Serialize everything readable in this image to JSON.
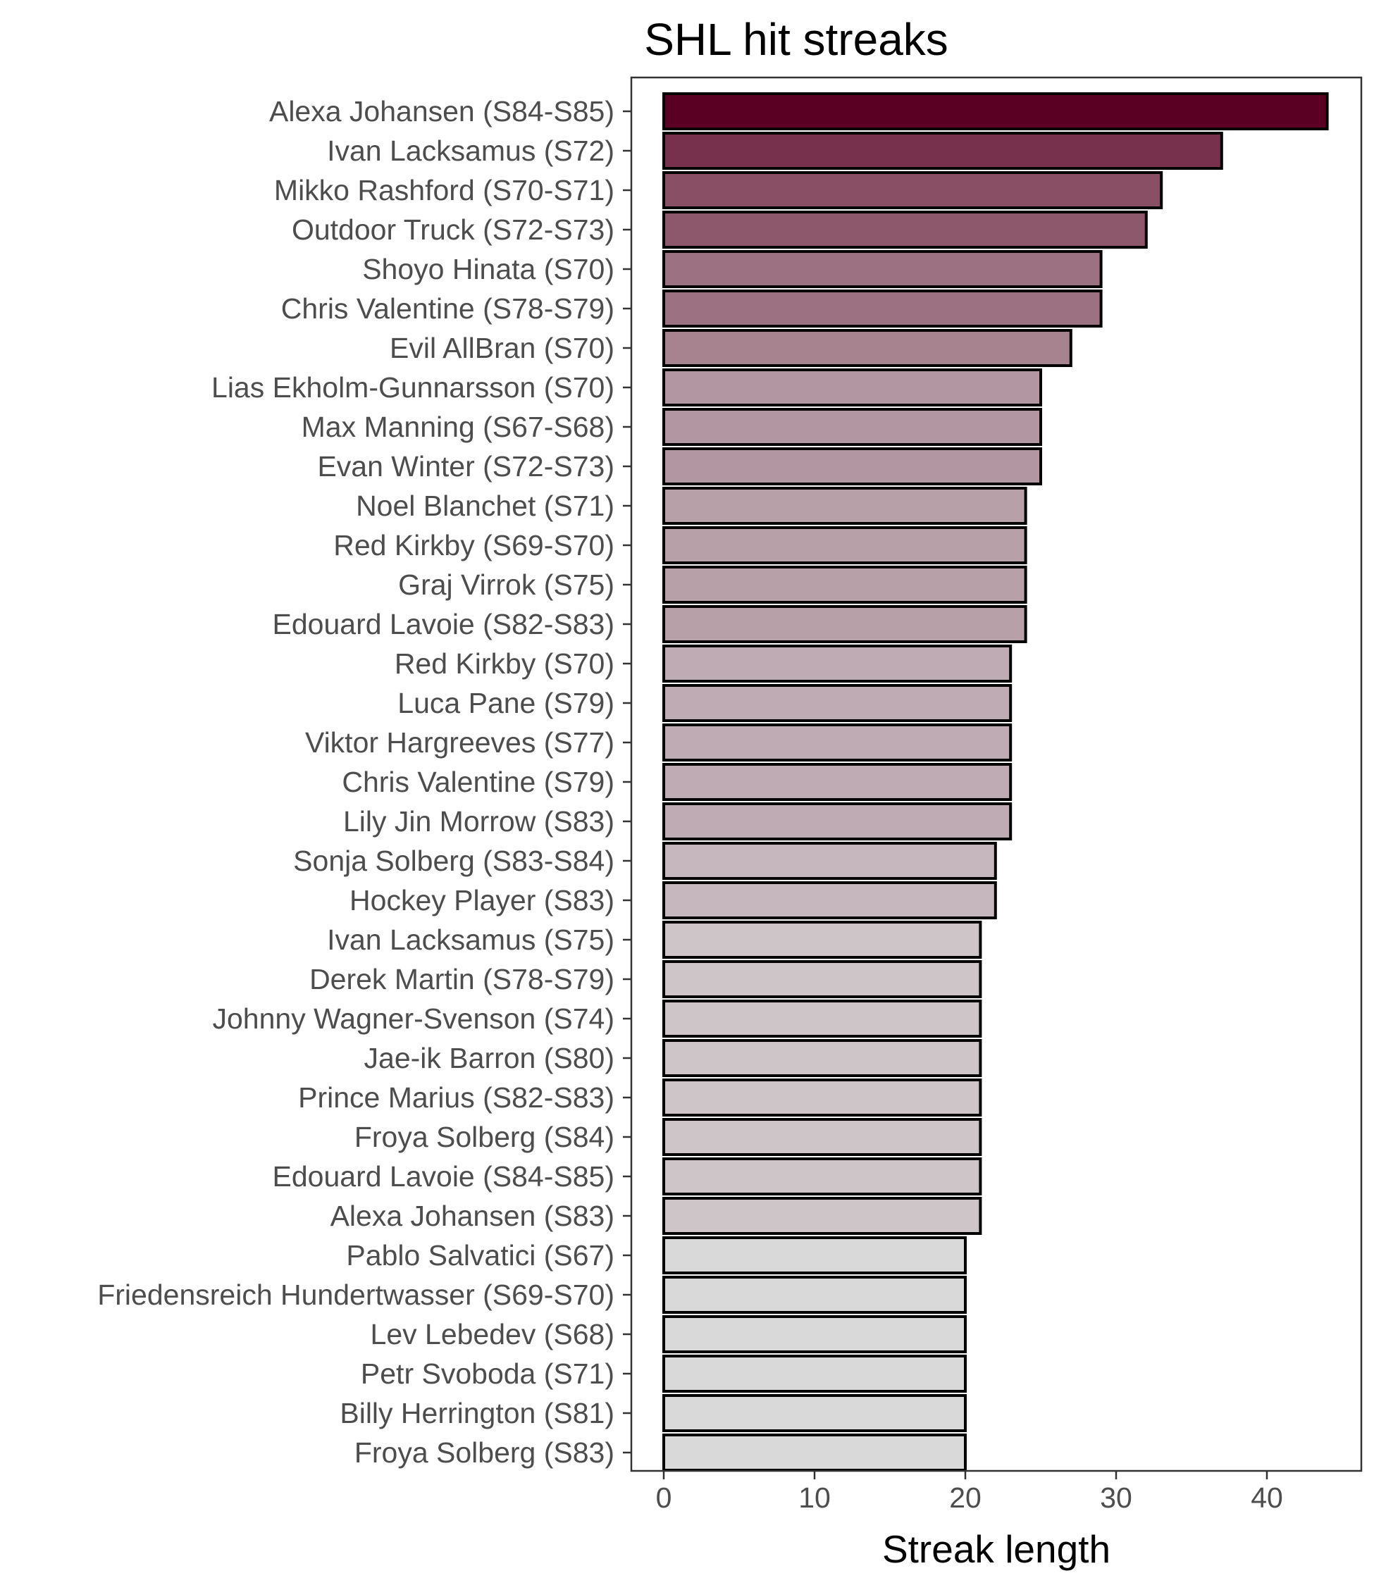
{
  "chart_data": {
    "type": "bar",
    "orientation": "horizontal",
    "title": "SHL hit streaks",
    "xlabel": "Streak length",
    "ylabel": "",
    "xlim": [
      0,
      46
    ],
    "xticks": [
      0,
      10,
      20,
      30,
      40
    ],
    "grid": false,
    "legend": "none",
    "colors": {
      "high": "#5a0022",
      "low": "#d9d9d9",
      "bar_outline": "#000000",
      "axis_text": "#4d4d4d",
      "panel_border": "#333333"
    },
    "categories": [
      "Alexa Johansen (S84-S85)",
      "Ivan Lacksamus (S72)",
      "Mikko Rashford (S70-S71)",
      "Outdoor Truck (S72-S73)",
      "Shoyo Hinata (S70)",
      "Chris Valentine (S78-S79)",
      "Evil AllBran (S70)",
      "Lias Ekholm-Gunnarsson (S70)",
      "Max Manning (S67-S68)",
      "Evan Winter (S72-S73)",
      "Noel Blanchet (S71)",
      "Red Kirkby (S69-S70)",
      "Graj Virrok (S75)",
      "Edouard Lavoie (S82-S83)",
      "Red Kirkby (S70)",
      "Luca Pane (S79)",
      "Viktor Hargreeves (S77)",
      "Chris Valentine (S79)",
      "Lily Jin Morrow (S83)",
      "Sonja Solberg (S83-S84)",
      "Hockey Player (S83)",
      "Ivan Lacksamus (S75)",
      "Derek Martin (S78-S79)",
      "Johnny Wagner-Svenson (S74)",
      "Jae-ik Barron (S80)",
      "Prince Marius (S82-S83)",
      "Froya Solberg (S84)",
      "Edouard Lavoie (S84-S85)",
      "Alexa Johansen (S83)",
      "Pablo Salvatici (S67)",
      "Friedensreich Hundertwasser (S69-S70)",
      "Lev Lebedev (S68)",
      "Petr Svoboda (S71)",
      "Billy Herrington (S81)",
      "Froya Solberg (S83)"
    ],
    "values": [
      44,
      37,
      33,
      32,
      29,
      29,
      27,
      25,
      25,
      25,
      24,
      24,
      24,
      24,
      23,
      23,
      23,
      23,
      23,
      22,
      22,
      21,
      21,
      21,
      21,
      21,
      21,
      21,
      21,
      20,
      20,
      20,
      20,
      20,
      20
    ]
  }
}
